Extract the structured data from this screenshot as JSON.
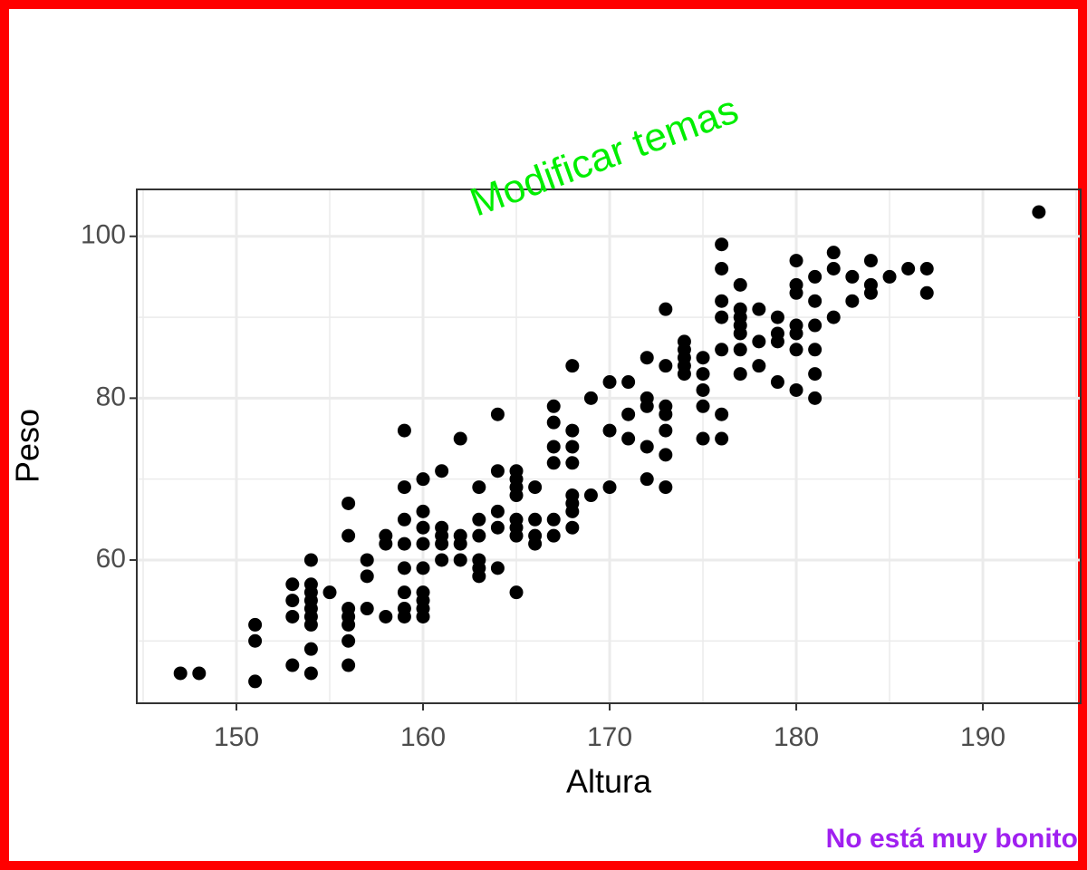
{
  "chart_data": {
    "type": "scatter",
    "title": "Modificar temas",
    "caption": "No está muy bonito",
    "x_label": "Altura",
    "y_label": "Peso",
    "title_color": "#00ee00",
    "caption_color": "#a020f0",
    "color": "#000000",
    "grid": true,
    "xlim": [
      144.66,
      195.24
    ],
    "ylim": [
      42.3,
      105.8
    ],
    "xticks": [
      150,
      160,
      170,
      180,
      190
    ],
    "yticks": [
      60,
      80,
      100
    ],
    "x_minor_ticks": [
      145,
      155,
      165,
      175,
      185,
      195
    ],
    "y_minor_ticks": [
      50,
      70,
      90
    ],
    "x": [
      147,
      148,
      151,
      151,
      151,
      153,
      153,
      153,
      153,
      154,
      154,
      154,
      154,
      154,
      154,
      154,
      154,
      154,
      155,
      156,
      156,
      156,
      156,
      156,
      156,
      156,
      157,
      157,
      157,
      158,
      158,
      158,
      159,
      159,
      159,
      159,
      159,
      159,
      159,
      159,
      160,
      160,
      160,
      160,
      160,
      160,
      160,
      160,
      160,
      161,
      161,
      161,
      161,
      161,
      162,
      162,
      162,
      162,
      163,
      163,
      163,
      163,
      163,
      163,
      164,
      164,
      164,
      164,
      164,
      165,
      165,
      165,
      165,
      165,
      165,
      165,
      165,
      166,
      166,
      166,
      166,
      167,
      167,
      167,
      167,
      167,
      167,
      168,
      168,
      168,
      168,
      168,
      168,
      168,
      168,
      169,
      169,
      170,
      170,
      170,
      171,
      171,
      171,
      172,
      172,
      172,
      172,
      172,
      173,
      173,
      173,
      173,
      173,
      173,
      173,
      174,
      174,
      174,
      174,
      174,
      175,
      175,
      175,
      175,
      175,
      176,
      176,
      176,
      176,
      176,
      176,
      176,
      177,
      177,
      177,
      177,
      177,
      177,
      177,
      178,
      178,
      178,
      179,
      179,
      179,
      179,
      180,
      180,
      180,
      180,
      180,
      180,
      180,
      181,
      181,
      181,
      181,
      181,
      181,
      182,
      182,
      182,
      183,
      183,
      184,
      184,
      184,
      185,
      186,
      187,
      187,
      193
    ],
    "values": [
      46,
      46,
      52,
      50,
      45,
      57,
      55,
      53,
      47,
      60,
      57,
      56,
      55,
      54,
      53,
      52,
      49,
      46,
      56,
      67,
      63,
      54,
      53,
      52,
      50,
      47,
      60,
      58,
      54,
      63,
      62,
      53,
      76,
      69,
      65,
      62,
      59,
      56,
      54,
      53,
      70,
      66,
      64,
      62,
      59,
      56,
      55,
      54,
      53,
      71,
      64,
      63,
      62,
      60,
      75,
      63,
      62,
      60,
      69,
      65,
      63,
      60,
      59,
      58,
      78,
      71,
      66,
      64,
      59,
      71,
      70,
      69,
      68,
      65,
      64,
      63,
      56,
      69,
      65,
      63,
      62,
      79,
      77,
      74,
      72,
      65,
      63,
      84,
      76,
      74,
      72,
      68,
      67,
      66,
      64,
      80,
      68,
      82,
      76,
      69,
      82,
      78,
      75,
      85,
      80,
      79,
      74,
      70,
      91,
      84,
      79,
      78,
      76,
      73,
      69,
      87,
      86,
      85,
      84,
      83,
      85,
      83,
      81,
      79,
      75,
      99,
      96,
      92,
      90,
      86,
      78,
      75,
      94,
      91,
      90,
      89,
      88,
      86,
      83,
      91,
      87,
      84,
      90,
      88,
      87,
      82,
      97,
      94,
      93,
      89,
      88,
      86,
      81,
      95,
      92,
      89,
      86,
      83,
      80,
      98,
      96,
      90,
      95,
      92,
      97,
      94,
      93,
      95,
      96,
      96,
      93,
      103
    ]
  }
}
